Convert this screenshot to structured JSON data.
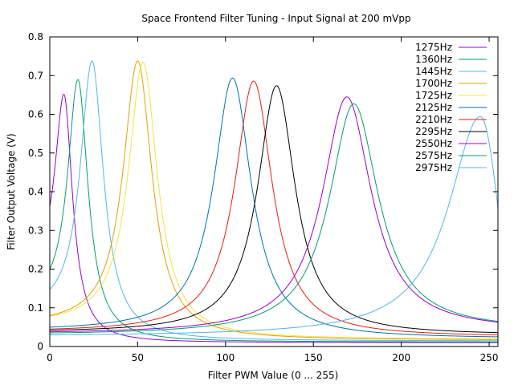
{
  "chart_data": {
    "type": "line",
    "title": "Space Frontend Filter Tuning - Input Signal at 200 mVpp",
    "xlabel": "Filter PWM Value (0 ... 255)",
    "ylabel": "Filter Output Voltage (V)",
    "xlim": [
      0,
      255
    ],
    "ylim": [
      0,
      0.8
    ],
    "xticks": [
      "0",
      "50",
      "100",
      "150",
      "200",
      "250"
    ],
    "yticks": [
      "0",
      "0.1",
      "0.2",
      "0.3",
      "0.4",
      "0.5",
      "0.6",
      "0.7",
      "0.8"
    ],
    "grid": false,
    "legend_position": "top-right",
    "series": [
      {
        "name": "1275Hz",
        "color": "#9400d3",
        "peak_x": 8,
        "peak_y": 0.652,
        "base": 0.008,
        "w": 6,
        "x0": 0,
        "y_start": 0.362,
        "y_end": 0.01
      },
      {
        "name": "1360Hz",
        "color": "#009e73",
        "peak_x": 16,
        "peak_y": 0.69,
        "base": 0.008,
        "w": 7,
        "x0": 0,
        "y_start": 0.2,
        "y_end": 0.012
      },
      {
        "name": "1445Hz",
        "color": "#56b4e9",
        "peak_x": 24,
        "peak_y": 0.738,
        "base": 0.008,
        "w": 8,
        "x0": 0,
        "y_start": 0.147,
        "y_end": 0.015
      },
      {
        "name": "1700Hz",
        "color": "#e69f00",
        "peak_x": 50,
        "peak_y": 0.738,
        "base": 0.008,
        "w": 10,
        "x0": 0,
        "y_start": 0.08,
        "y_end": 0.018
      },
      {
        "name": "1725Hz",
        "color": "#f0e442",
        "peak_x": 53,
        "peak_y": 0.735,
        "base": 0.008,
        "w": 10,
        "x0": 0,
        "y_start": 0.078,
        "y_end": 0.02
      },
      {
        "name": "2125Hz",
        "color": "#0072b2",
        "peak_x": 104,
        "peak_y": 0.694,
        "base": 0.008,
        "w": 13,
        "x0": 0,
        "y_start": 0.05,
        "y_end": 0.025
      },
      {
        "name": "2210Hz",
        "color": "#e51e10",
        "peak_x": 116,
        "peak_y": 0.686,
        "base": 0.008,
        "w": 13,
        "x0": 0,
        "y_start": 0.045,
        "y_end": 0.03
      },
      {
        "name": "2295Hz",
        "color": "#000000",
        "peak_x": 129,
        "peak_y": 0.674,
        "base": 0.008,
        "w": 13,
        "x0": 0,
        "y_start": 0.042,
        "y_end": 0.036
      },
      {
        "name": "2550Hz",
        "color": "#9400d3",
        "peak_x": 169,
        "peak_y": 0.645,
        "base": 0.008,
        "w": 17,
        "x0": 0,
        "y_start": 0.038,
        "y_end": 0.063
      },
      {
        "name": "2575Hz",
        "color": "#009e73",
        "peak_x": 173,
        "peak_y": 0.627,
        "base": 0.008,
        "w": 17,
        "x0": 0,
        "y_start": 0.035,
        "y_end": 0.065
      },
      {
        "name": "2975Hz",
        "color": "#56b4e9",
        "peak_x": 245,
        "peak_y": 0.594,
        "base": 0.008,
        "w": 22,
        "x0": 0,
        "y_start": 0.03,
        "y_end": 0.358
      }
    ]
  }
}
